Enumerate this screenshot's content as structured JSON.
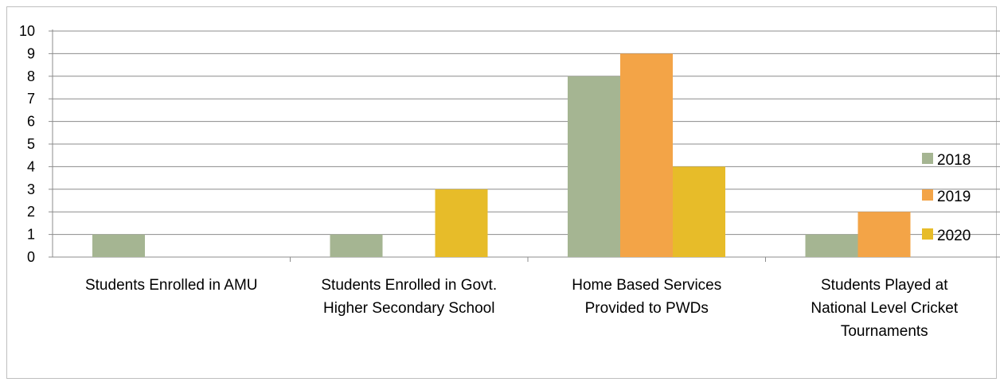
{
  "chart_data": {
    "type": "bar",
    "title": "",
    "xlabel": "",
    "ylabel": "",
    "ylim": [
      0,
      10
    ],
    "yticks": [
      "0",
      "1",
      "2",
      "3",
      "4",
      "5",
      "6",
      "7",
      "8",
      "9",
      "10"
    ],
    "grid": true,
    "legend_position": "right",
    "categories": [
      [
        "Students Enrolled in AMU"
      ],
      [
        "Students Enrolled in Govt.",
        "Higher Secondary School"
      ],
      [
        "Home Based Services",
        "Provided to PWDs"
      ],
      [
        "Students Played at",
        "National Level Cricket",
        "Tournaments"
      ]
    ],
    "series": [
      {
        "name": "2018",
        "color": "#a5b592",
        "values": [
          1,
          1,
          8,
          1
        ]
      },
      {
        "name": "2019",
        "color": "#f3a447",
        "values": [
          0,
          0,
          9,
          2
        ]
      },
      {
        "name": "2020",
        "color": "#e7bc29",
        "values": [
          0,
          3,
          4,
          0
        ]
      }
    ]
  }
}
